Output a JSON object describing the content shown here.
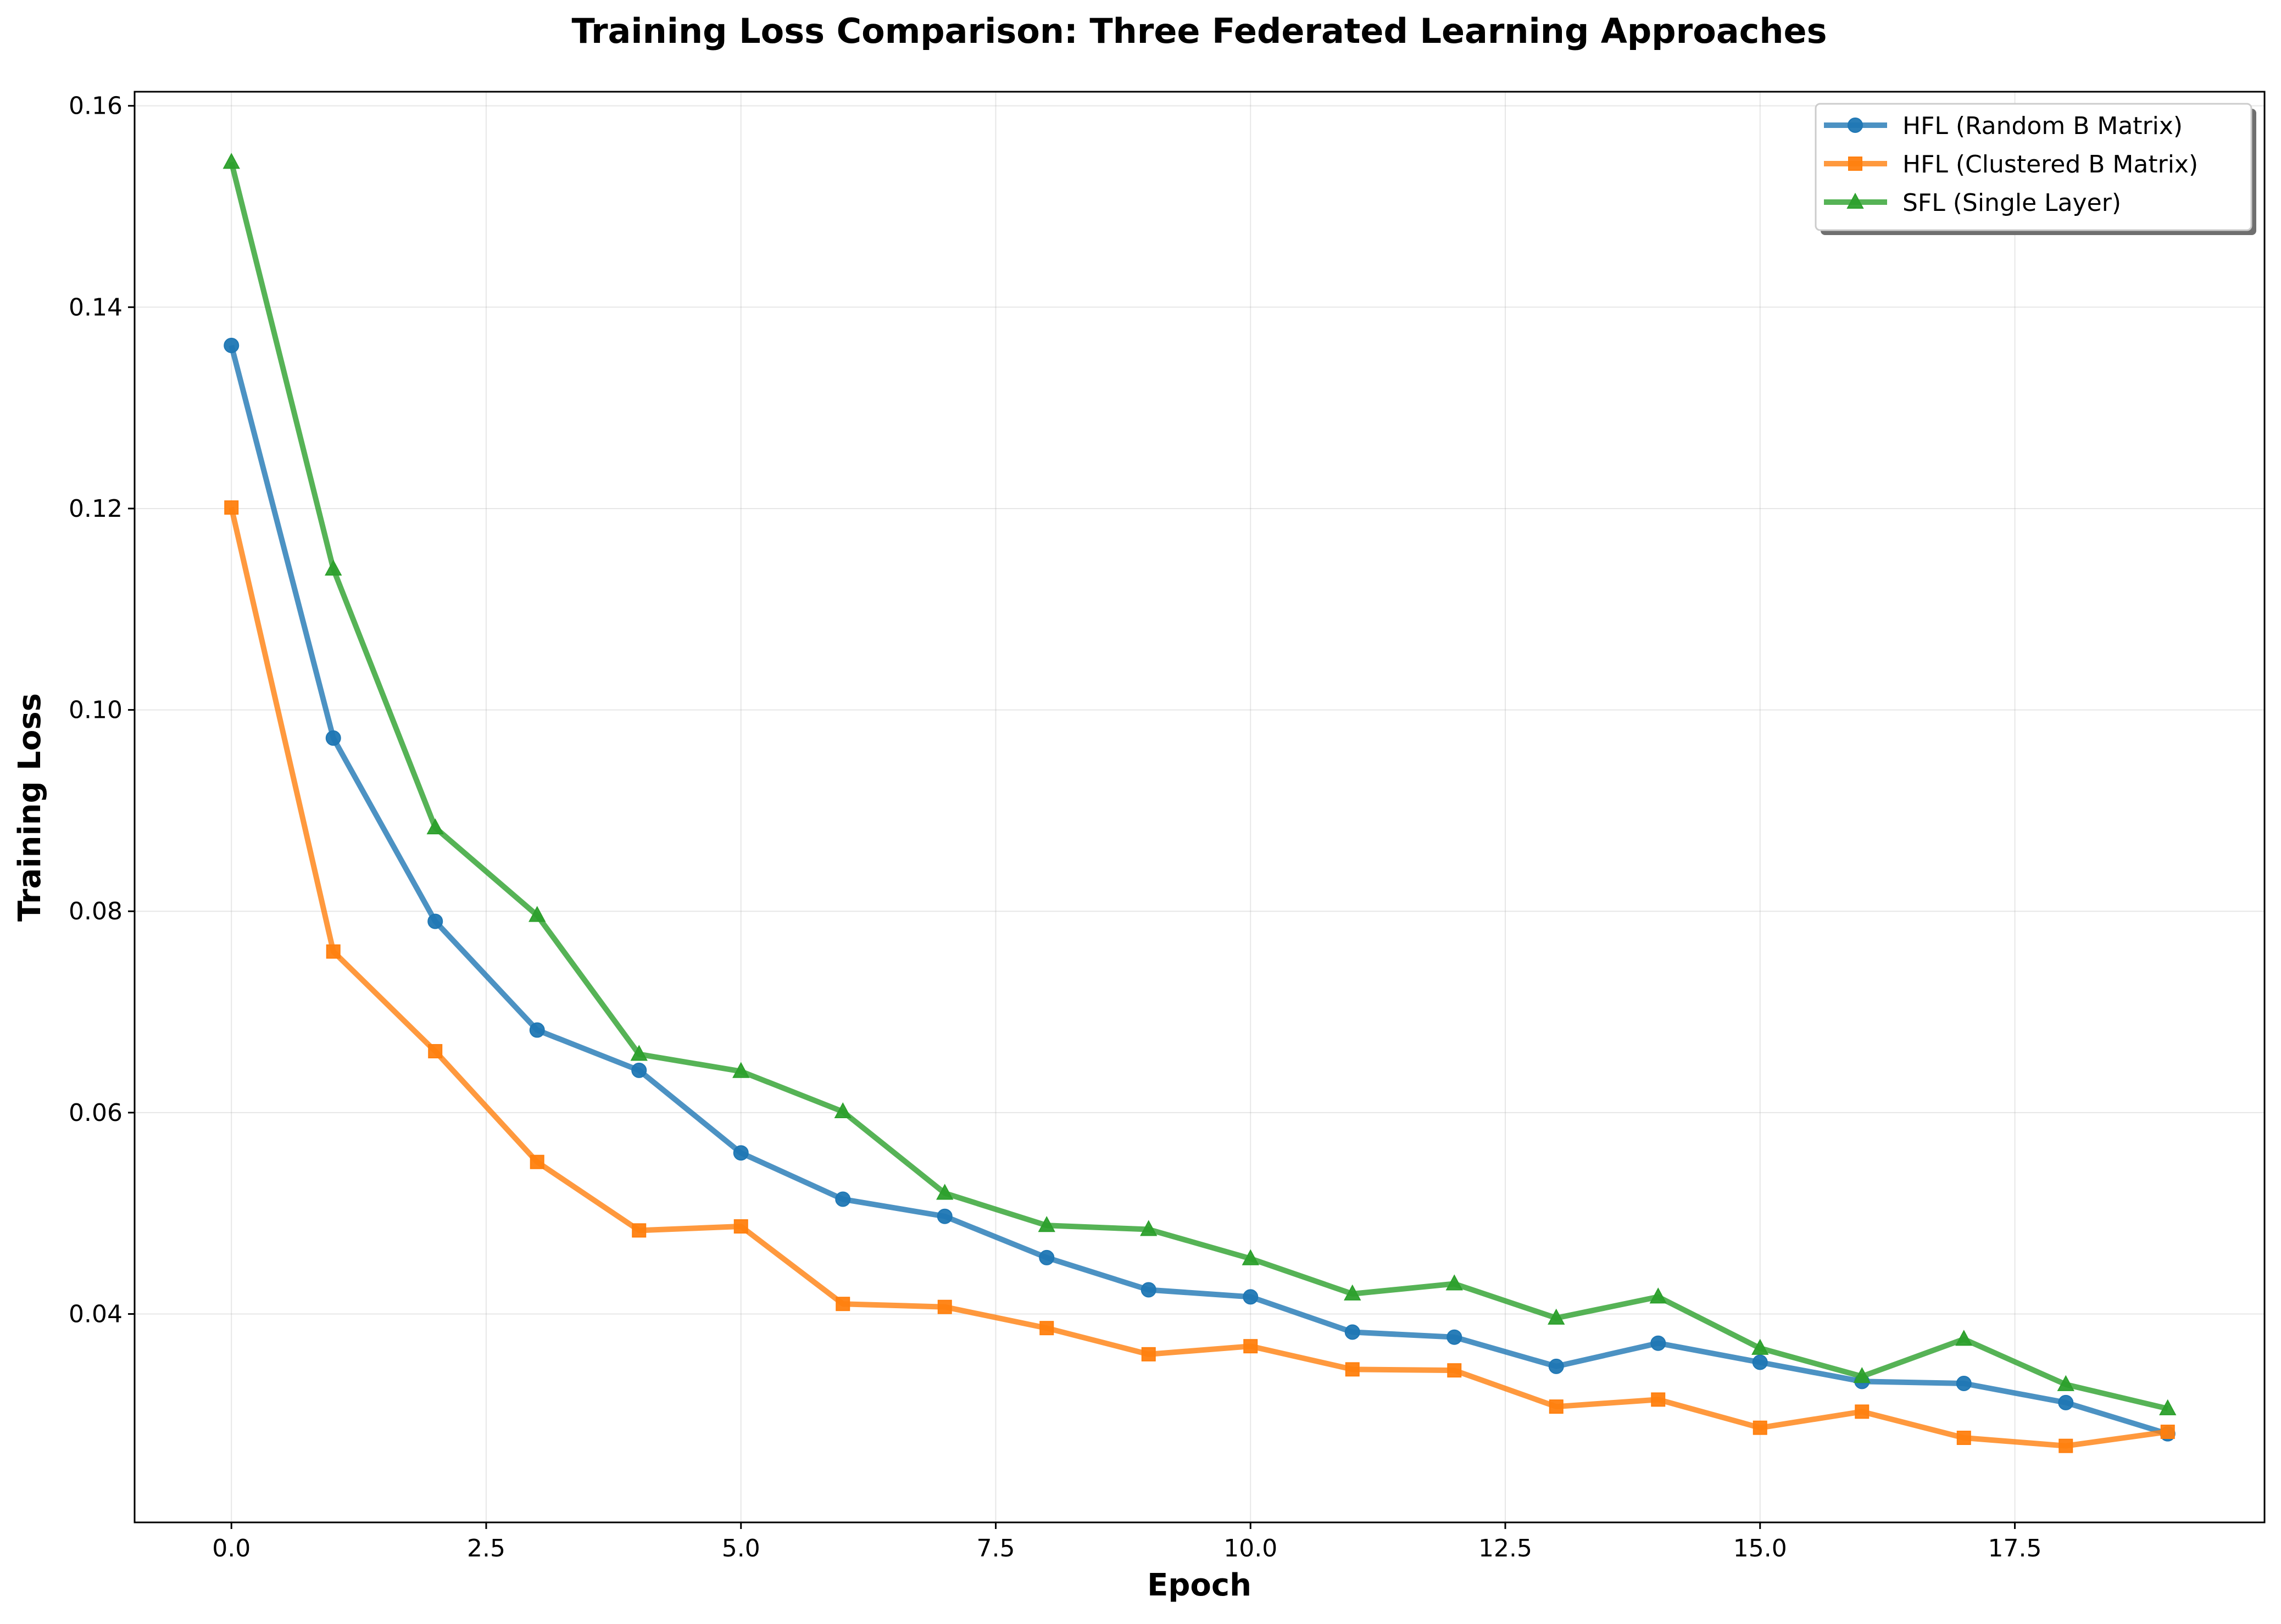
{
  "chart_data": {
    "type": "line",
    "title": "Training Loss Comparison: Three Federated Learning Approaches",
    "xlabel": "Epoch",
    "ylabel": "Training Loss",
    "xlim": [
      -0.95,
      19.95
    ],
    "ylim": [
      0.0193,
      0.1614
    ],
    "x_ticks": [
      0.0,
      2.5,
      5.0,
      7.5,
      10.0,
      12.5,
      15.0,
      17.5
    ],
    "x_tick_labels": [
      "0.0",
      "2.5",
      "5.0",
      "7.5",
      "10.0",
      "12.5",
      "15.0",
      "17.5"
    ],
    "y_ticks": [
      0.04,
      0.06,
      0.08,
      0.1,
      0.12,
      0.14,
      0.16
    ],
    "y_tick_labels": [
      "0.04",
      "0.06",
      "0.08",
      "0.10",
      "0.12",
      "0.14",
      "0.16"
    ],
    "grid": true,
    "legend_position": "top-right",
    "x": [
      0,
      1,
      2,
      3,
      4,
      5,
      6,
      7,
      8,
      9,
      10,
      11,
      12,
      13,
      14,
      15,
      16,
      17,
      18,
      19
    ],
    "series": [
      {
        "name": "HFL (Random B Matrix)",
        "color": "#1f77b4",
        "marker": "circle",
        "values": [
          0.1362,
          0.0972,
          0.079,
          0.0682,
          0.0642,
          0.056,
          0.0514,
          0.0497,
          0.0456,
          0.0424,
          0.0417,
          0.0382,
          0.0377,
          0.0348,
          0.0371,
          0.0352,
          0.0333,
          0.0331,
          0.0312,
          0.0281
        ]
      },
      {
        "name": "HFL (Clustered B Matrix)",
        "color": "#ff7f0e",
        "marker": "square",
        "values": [
          0.1201,
          0.076,
          0.0661,
          0.0551,
          0.0483,
          0.0487,
          0.041,
          0.0407,
          0.0386,
          0.036,
          0.0368,
          0.0345,
          0.0344,
          0.0308,
          0.0315,
          0.0287,
          0.0303,
          0.0277,
          0.0269,
          0.0283
        ]
      },
      {
        "name": "SFL (Single Layer)",
        "color": "#2ca02c",
        "marker": "triangle",
        "values": [
          0.1544,
          0.114,
          0.0883,
          0.0796,
          0.0658,
          0.0641,
          0.0601,
          0.052,
          0.0488,
          0.0484,
          0.0455,
          0.042,
          0.043,
          0.0396,
          0.0417,
          0.0366,
          0.0338,
          0.0375,
          0.033,
          0.0306
        ]
      }
    ]
  }
}
